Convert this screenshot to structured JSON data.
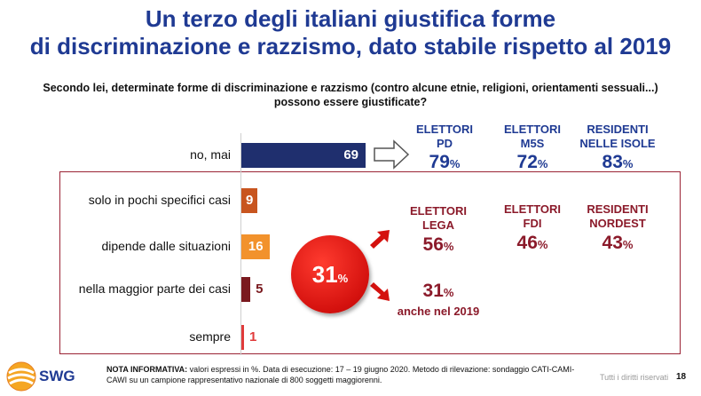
{
  "title_line1": "Un terzo degli italiani giustifica forme",
  "title_line2": "di discriminazione e razzismo, dato stabile rispetto al 2019",
  "question_line1": "Secondo lei, determinate forme di discriminazione e razzismo (contro alcune etnie, religioni, orientamenti sessuali...)",
  "question_line2": "possono essere giustificate?",
  "chart_data": {
    "type": "bar",
    "orientation": "horizontal",
    "categories": [
      "no, mai",
      "solo in pochi specifici casi",
      "dipende dalle situazioni",
      "nella maggior parte dei casi",
      "sempre"
    ],
    "values": [
      69,
      9,
      16,
      5,
      1
    ],
    "bar_colors": [
      "#1f2f6e",
      "#c8551f",
      "#f2922c",
      "#7a1a1f",
      "#e03b3b"
    ],
    "xlim": [
      0,
      100
    ]
  },
  "top_groups": [
    {
      "line1": "ELETTORI",
      "line2": "PD",
      "value": "79",
      "unit": "%"
    },
    {
      "line1": "ELETTORI",
      "line2": "M5S",
      "value": "72",
      "unit": "%"
    },
    {
      "line1": "RESIDENTI",
      "line2": "NELLE ISOLE",
      "value": "83",
      "unit": "%"
    }
  ],
  "bottom_groups": [
    {
      "line1": "ELETTORI",
      "line2": "LEGA",
      "value": "56",
      "unit": "%"
    },
    {
      "line1": "ELETTORI",
      "line2": "FDI",
      "value": "46",
      "unit": "%"
    },
    {
      "line1": "RESIDENTI",
      "line2": "NORDEST",
      "value": "43",
      "unit": "%"
    }
  ],
  "total": {
    "value": "31",
    "unit": "%"
  },
  "comparison": {
    "value": "31",
    "unit": "%",
    "label": "anche nel 2019"
  },
  "note_label": "NOTA INFORMATIVA:",
  "note_text": " valori espressi in %. Data di esecuzione: 17 – 19 giugno 2020. Metodo di rilevazione: sondaggio CATI-CAMI-CAWI su un campione rappresentativo nazionale di 800 soggetti maggiorenni.",
  "logo": "SWG",
  "rights": "Tutti i diritti riservati",
  "page_number": "18",
  "colors": {
    "navy": "#1f3a93",
    "maroon": "#8b1a2a",
    "red": "#d4110e"
  }
}
